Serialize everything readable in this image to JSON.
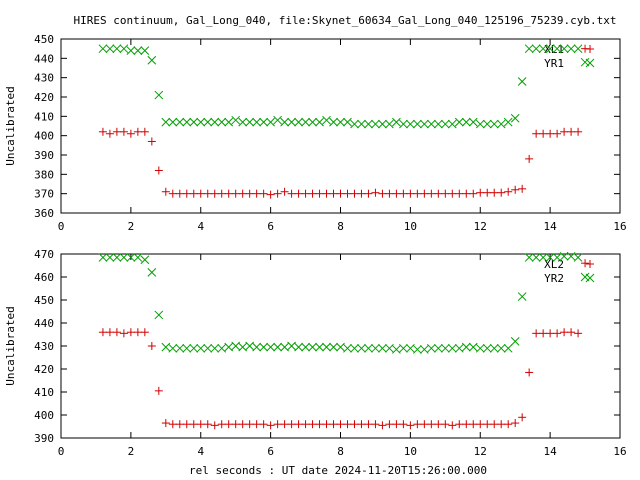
{
  "title": "HIRES continuum, Gal_Long_040, file:Skynet_60634_Gal_Long_040_125196_75239.cyb.txt",
  "xlabel": "rel seconds : UT date 2024-11-20T15:26:00.000",
  "colors": {
    "red": "#d00000",
    "green": "#00a000",
    "axis": "#000000"
  },
  "chart_data": [
    {
      "type": "scatter",
      "ylabel": "Uncalibrated",
      "xlim": [
        0,
        16
      ],
      "ylim": [
        360,
        450
      ],
      "xticks": [
        0,
        2,
        4,
        6,
        8,
        10,
        12,
        14,
        16
      ],
      "yticks": [
        360,
        370,
        380,
        390,
        400,
        410,
        420,
        430,
        440,
        450
      ],
      "legend_position": "top-right",
      "series": [
        {
          "name": "XL1",
          "marker": "plus",
          "color": "#d00000",
          "x": [
            1.2,
            1.4,
            1.6,
            1.8,
            2.0,
            2.2,
            2.4,
            2.6,
            2.8,
            3.0,
            3.2,
            3.4,
            3.6,
            3.8,
            4.0,
            4.2,
            4.4,
            4.6,
            4.8,
            5.0,
            5.2,
            5.4,
            5.6,
            5.8,
            6.0,
            6.2,
            6.4,
            6.6,
            6.8,
            7.0,
            7.2,
            7.4,
            7.6,
            7.8,
            8.0,
            8.2,
            8.4,
            8.6,
            8.8,
            9.0,
            9.2,
            9.4,
            9.6,
            9.8,
            10.0,
            10.2,
            10.4,
            10.6,
            10.8,
            11.0,
            11.2,
            11.4,
            11.6,
            11.8,
            12.0,
            12.2,
            12.4,
            12.6,
            12.8,
            13.0,
            13.2,
            13.4,
            13.6,
            13.8,
            14.0,
            14.2,
            14.4,
            14.6,
            14.8,
            15.0
          ],
          "y": [
            402,
            401,
            402,
            402,
            401,
            402,
            402,
            397,
            382,
            371,
            370,
            370,
            370,
            370,
            370,
            370,
            370,
            370,
            370,
            370,
            370,
            370,
            370,
            370,
            369.5,
            370,
            371,
            370,
            370,
            370,
            370,
            370,
            370,
            370,
            370,
            370,
            370,
            370,
            370,
            370.5,
            370,
            370,
            370,
            370,
            370,
            370,
            370,
            370,
            370,
            370,
            370,
            370,
            370,
            370,
            370.5,
            370.5,
            370.5,
            370.5,
            371,
            372,
            372.5,
            388,
            401,
            401,
            401,
            401,
            402,
            402,
            402,
            445
          ],
          "y_note": ""
        },
        {
          "name": "YR1",
          "marker": "cross",
          "color": "#00a000",
          "x": [
            1.2,
            1.4,
            1.6,
            1.8,
            2.0,
            2.2,
            2.4,
            2.6,
            2.8,
            3.0,
            3.2,
            3.4,
            3.6,
            3.8,
            4.0,
            4.2,
            4.4,
            4.6,
            4.8,
            5.0,
            5.2,
            5.4,
            5.6,
            5.8,
            6.0,
            6.2,
            6.4,
            6.6,
            6.8,
            7.0,
            7.2,
            7.4,
            7.6,
            7.8,
            8.0,
            8.2,
            8.4,
            8.6,
            8.8,
            9.0,
            9.2,
            9.4,
            9.6,
            9.8,
            10.0,
            10.2,
            10.4,
            10.6,
            10.8,
            11.0,
            11.2,
            11.4,
            11.6,
            11.8,
            12.0,
            12.2,
            12.4,
            12.6,
            12.8,
            13.0,
            13.2,
            13.4,
            13.6,
            13.8,
            14.0,
            14.2,
            14.4,
            14.6,
            14.8,
            15.0
          ],
          "y": [
            445,
            445,
            445,
            445,
            444,
            444,
            444,
            439,
            421,
            407,
            407,
            407,
            407,
            407,
            407,
            407,
            407,
            407,
            407,
            408,
            407,
            407,
            407,
            407,
            407,
            408,
            407,
            407,
            407,
            407,
            407,
            407,
            408,
            407,
            407,
            407,
            406,
            406,
            406,
            406,
            406,
            406,
            407,
            406,
            406,
            406,
            406,
            406,
            406,
            406,
            406,
            407,
            407,
            407,
            406,
            406,
            406,
            406,
            407,
            409,
            428,
            445,
            445,
            445,
            445,
            445,
            445,
            445,
            445,
            438
          ]
        }
      ]
    },
    {
      "type": "scatter",
      "ylabel": "Uncalibrated",
      "xlim": [
        0,
        16
      ],
      "ylim": [
        390,
        470
      ],
      "xticks": [
        0,
        2,
        4,
        6,
        8,
        10,
        12,
        14,
        16
      ],
      "yticks": [
        390,
        400,
        410,
        420,
        430,
        440,
        450,
        460,
        470
      ],
      "legend_position": "top-right",
      "series": [
        {
          "name": "XL2",
          "marker": "plus",
          "color": "#d00000",
          "x": [
            1.2,
            1.4,
            1.6,
            1.8,
            2.0,
            2.2,
            2.4,
            2.6,
            2.8,
            3.0,
            3.2,
            3.4,
            3.6,
            3.8,
            4.0,
            4.2,
            4.4,
            4.6,
            4.8,
            5.0,
            5.2,
            5.4,
            5.6,
            5.8,
            6.0,
            6.2,
            6.4,
            6.6,
            6.8,
            7.0,
            7.2,
            7.4,
            7.6,
            7.8,
            8.0,
            8.2,
            8.4,
            8.6,
            8.8,
            9.0,
            9.2,
            9.4,
            9.6,
            9.8,
            10.0,
            10.2,
            10.4,
            10.6,
            10.8,
            11.0,
            11.2,
            11.4,
            11.6,
            11.8,
            12.0,
            12.2,
            12.4,
            12.6,
            12.8,
            13.0,
            13.2,
            13.4,
            13.6,
            13.8,
            14.0,
            14.2,
            14.4,
            14.6,
            14.8,
            15.0
          ],
          "y": [
            436,
            436,
            436,
            435.5,
            436,
            436,
            436,
            430,
            410.5,
            396.5,
            396,
            396,
            396,
            396,
            396,
            396,
            395.5,
            396,
            396,
            396,
            396,
            396,
            396,
            396,
            395.5,
            396,
            396,
            396,
            396,
            396,
            396,
            396,
            396,
            396,
            396,
            396,
            396,
            396,
            396,
            396,
            395.5,
            396,
            396,
            396,
            395.5,
            396,
            396,
            396,
            396,
            396,
            395.5,
            396,
            396,
            396,
            396,
            396,
            396,
            396,
            396,
            396.5,
            399,
            418.5,
            435.5,
            435.5,
            435.5,
            435.5,
            436,
            436,
            435.5,
            466
          ]
        },
        {
          "name": "YR2",
          "marker": "cross",
          "color": "#00a000",
          "x": [
            1.2,
            1.4,
            1.6,
            1.8,
            2.0,
            2.2,
            2.4,
            2.6,
            2.8,
            3.0,
            3.2,
            3.4,
            3.6,
            3.8,
            4.0,
            4.2,
            4.4,
            4.6,
            4.8,
            5.0,
            5.2,
            5.4,
            5.6,
            5.8,
            6.0,
            6.2,
            6.4,
            6.6,
            6.8,
            7.0,
            7.2,
            7.4,
            7.6,
            7.8,
            8.0,
            8.2,
            8.4,
            8.6,
            8.8,
            9.0,
            9.2,
            9.4,
            9.6,
            9.8,
            10.0,
            10.2,
            10.4,
            10.6,
            10.8,
            11.0,
            11.2,
            11.4,
            11.6,
            11.8,
            12.0,
            12.2,
            12.4,
            12.6,
            12.8,
            13.0,
            13.2,
            13.4,
            13.6,
            13.8,
            14.0,
            14.2,
            14.4,
            14.6,
            14.8,
            15.0
          ],
          "y": [
            468.5,
            468.5,
            468.5,
            468.5,
            468.5,
            468.5,
            467.5,
            462,
            443.5,
            429.5,
            429,
            429,
            429,
            429,
            429,
            429,
            429,
            429,
            429.5,
            430,
            429.5,
            430,
            429.5,
            429.5,
            429.5,
            429.5,
            429.5,
            430,
            429.5,
            429.5,
            429.5,
            429.5,
            429.5,
            429.5,
            429.5,
            429,
            429,
            429,
            429,
            429,
            429,
            429,
            428.5,
            429,
            429,
            428.5,
            428.5,
            429,
            429,
            429,
            429,
            429,
            429.5,
            429.5,
            429,
            429,
            429,
            429,
            429,
            432,
            451.5,
            468.5,
            468.5,
            468.5,
            468.5,
            468.5,
            469,
            469,
            468.5,
            460
          ]
        }
      ]
    }
  ]
}
